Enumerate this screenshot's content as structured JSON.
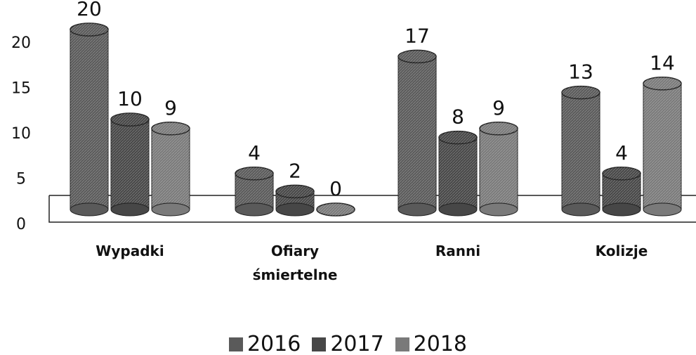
{
  "chart_data": {
    "type": "bar",
    "categories": [
      "Wypadki",
      "Ofiary śmiertelne",
      "Ranni",
      "Kolizje"
    ],
    "series": [
      {
        "name": "2016",
        "color": "#5a5a5a",
        "values": [
          20,
          4,
          17,
          13
        ]
      },
      {
        "name": "2017",
        "color": "#474747",
        "values": [
          10,
          2,
          8,
          4
        ]
      },
      {
        "name": "2018",
        "color": "#7a7a7a",
        "values": [
          9,
          0,
          9,
          14
        ]
      }
    ],
    "ylim": [
      0,
      20
    ],
    "yticks": [
      0,
      5,
      10,
      15,
      20
    ],
    "legend": "bottom"
  }
}
